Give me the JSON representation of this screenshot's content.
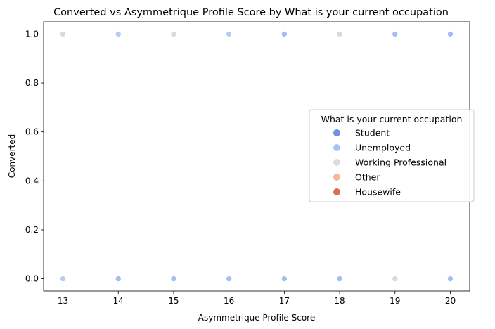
{
  "chart_data": {
    "type": "scatter",
    "title": "Converted vs Asymmetrique Profile Score by What is your current occupation",
    "xlabel": "Asymmetrique Profile Score",
    "ylabel": "Converted",
    "xlim": [
      12.65,
      20.35
    ],
    "ylim": [
      -0.05,
      1.05
    ],
    "xticks": [
      "13",
      "14",
      "15",
      "16",
      "17",
      "18",
      "19",
      "20"
    ],
    "yticks": [
      "0.0",
      "0.2",
      "0.4",
      "0.6",
      "0.8",
      "1.0"
    ],
    "grid": false,
    "legend": {
      "title": "What is your current occupation",
      "placement": "center-right",
      "entries": [
        {
          "label": "Student",
          "color": "#6f8fe8"
        },
        {
          "label": "Unemployed",
          "color": "#aac2f3"
        },
        {
          "label": "Working Professional",
          "color": "#dcdcdc"
        },
        {
          "label": "Other",
          "color": "#f2b99a"
        },
        {
          "label": "Housewife",
          "color": "#de6b55"
        }
      ]
    },
    "series": [
      {
        "name": "Student",
        "color": "#6f8fe8",
        "points": [
          [
            17,
            1
          ],
          [
            19,
            1
          ],
          [
            20,
            1
          ],
          [
            14,
            0
          ],
          [
            15,
            0
          ],
          [
            16,
            0
          ],
          [
            17,
            0
          ],
          [
            18,
            0
          ],
          [
            20,
            0
          ]
        ]
      },
      {
        "name": "Unemployed",
        "color": "#aac2f3",
        "points": [
          [
            13,
            1
          ],
          [
            14,
            1
          ],
          [
            15,
            1
          ],
          [
            16,
            1
          ],
          [
            17,
            1
          ],
          [
            18,
            1
          ],
          [
            19,
            1
          ],
          [
            20,
            1
          ],
          [
            13,
            0
          ],
          [
            14,
            0
          ],
          [
            15,
            0
          ],
          [
            16,
            0
          ],
          [
            17,
            0
          ],
          [
            18,
            0
          ],
          [
            19,
            0
          ],
          [
            20,
            0
          ]
        ]
      },
      {
        "name": "Working Professional",
        "color": "#dcdcdc",
        "points": [
          [
            13,
            1
          ],
          [
            15,
            1
          ],
          [
            18,
            1
          ],
          [
            19,
            0
          ]
        ]
      }
    ]
  }
}
